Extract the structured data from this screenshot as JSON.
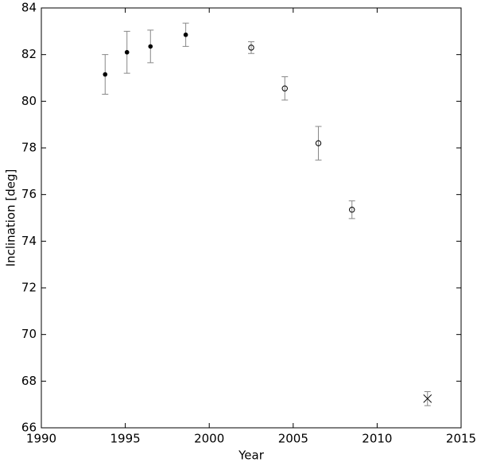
{
  "chart_data": {
    "type": "scatter",
    "x_label": "Year",
    "y_label": "Inclination [deg]",
    "xlim": [
      1990,
      2015
    ],
    "xticks": [
      1990,
      1995,
      2000,
      2005,
      2010,
      2015
    ],
    "ylim": [
      66,
      84
    ],
    "yticks": [
      66,
      68,
      70,
      72,
      74,
      76,
      78,
      80,
      82,
      84
    ],
    "grid": false,
    "error_color": "#888888",
    "series": [
      {
        "marker": "filled-circle",
        "color": "#000000",
        "x": [
          1993.8,
          1995.1,
          1996.5,
          1998.6
        ],
        "values": [
          81.15,
          82.1,
          82.35,
          82.85
        ],
        "errors": [
          0.85,
          0.9,
          0.7,
          0.5
        ]
      },
      {
        "marker": "open-circle",
        "color": "#000000",
        "x": [
          2002.5,
          2004.5,
          2006.5,
          2008.5
        ],
        "values": [
          82.3,
          80.55,
          78.2,
          75.35
        ],
        "errors": [
          0.25,
          0.5,
          0.72,
          0.38
        ]
      },
      {
        "marker": "cross",
        "color": "#000000",
        "x": [
          2013
        ],
        "values": [
          67.25
        ],
        "errors": [
          0.3
        ]
      }
    ]
  }
}
